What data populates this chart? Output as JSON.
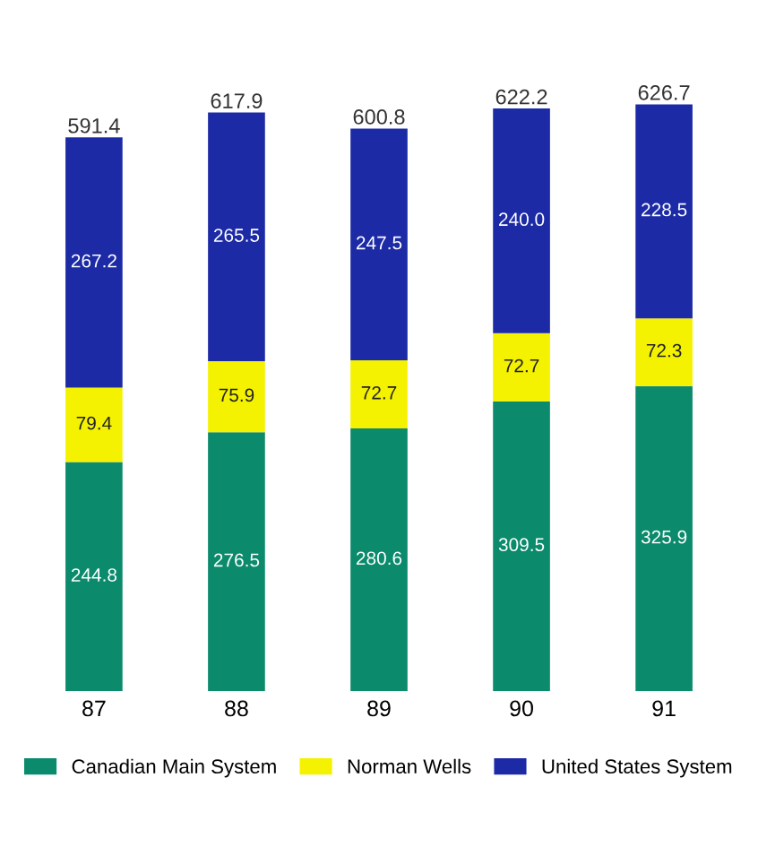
{
  "chart_data": {
    "type": "bar",
    "stacked": true,
    "categories": [
      "87",
      "88",
      "89",
      "90",
      "91"
    ],
    "series": [
      {
        "name": "Canadian Main System",
        "color": "#0b8a6c",
        "values": [
          244.8,
          276.5,
          280.6,
          309.5,
          325.9
        ],
        "value_labels": [
          "244.8",
          "276.5",
          "280.6",
          "309.5",
          "325.9"
        ]
      },
      {
        "name": "Norman Wells",
        "color": "#f4f200",
        "values": [
          79.4,
          75.9,
          72.7,
          72.7,
          72.3
        ],
        "value_labels": [
          "79.4",
          "75.9",
          "72.7",
          "72.7",
          "72.3"
        ]
      },
      {
        "name": "United States System",
        "color": "#1c2aa6",
        "values": [
          267.2,
          265.5,
          247.5,
          240.0,
          228.5
        ],
        "value_labels": [
          "267.2",
          "265.5",
          "247.5",
          "240.0",
          "228.5"
        ]
      }
    ],
    "totals": [
      "591.4",
      "617.9",
      "600.8",
      "622.2",
      "626.7"
    ],
    "tick_labels": "x",
    "grid": false,
    "legend": "bottom"
  }
}
